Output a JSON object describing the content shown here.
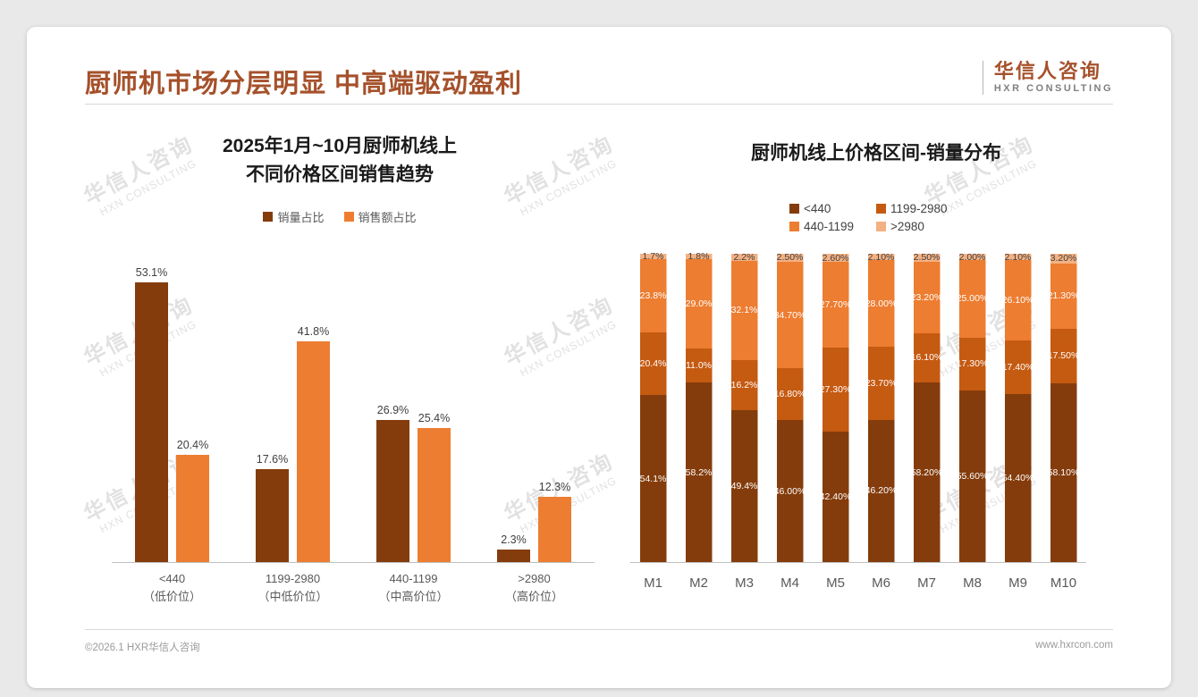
{
  "page": {
    "title": "厨师机市场分层明显 中高端驱动盈利",
    "logo": {
      "cn": "华信人咨询",
      "en": "HXR CONSULTING"
    },
    "watermark": {
      "line1": "华信人咨询",
      "line2": "HXN CONSULTING"
    },
    "footer": {
      "left": "©2026.1 HXR华信人咨询",
      "right": "www.hxrcon.com"
    }
  },
  "colors": {
    "title": "#A5512B",
    "series_lt440": "#843C0C",
    "series_1199_2980": "#C55A11",
    "series_440_1199": "#ED7D31",
    "series_gt2980": "#F4B183",
    "axis_line": "#BFBFBF",
    "value_label": "#404040"
  },
  "chart_data": [
    {
      "type": "bar",
      "stacked": false,
      "title": "2025年1月~10月厨师机线上\n不同价格区间销售趋势",
      "categories": [
        "<440\n（低价位）",
        "1199-2980\n（中低价位）",
        "440-1199\n（中高价位）",
        ">2980\n（高价位）"
      ],
      "series": [
        {
          "name": "销量占比",
          "color": "#843C0C",
          "values": [
            53.1,
            17.6,
            26.9,
            2.3
          ]
        },
        {
          "name": "销售额占比",
          "color": "#ED7D31",
          "values": [
            20.4,
            41.8,
            25.4,
            12.3
          ]
        }
      ],
      "value_suffix": "%",
      "label_decimals": 1,
      "ylim": [
        0,
        56
      ],
      "legend_position": "top",
      "grid": false
    },
    {
      "type": "bar",
      "stacked": true,
      "title": "厨师机线上价格区间-销量分布",
      "categories": [
        "M1",
        "M2",
        "M3",
        "M4",
        "M5",
        "M6",
        "M7",
        "M8",
        "M9",
        "M10"
      ],
      "series": [
        {
          "name": "<440",
          "color": "#843C0C",
          "label_color": "#FFFFFF",
          "values": [
            54.1,
            58.2,
            49.4,
            46.0,
            42.4,
            46.2,
            58.2,
            55.6,
            54.4,
            58.1
          ]
        },
        {
          "name": "1199-2980",
          "color": "#C55A11",
          "label_color": "#FFFFFF",
          "values": [
            20.4,
            11.0,
            16.2,
            16.8,
            27.3,
            23.7,
            16.1,
            17.3,
            17.4,
            17.5
          ]
        },
        {
          "name": "440-1199",
          "color": "#ED7D31",
          "label_color": "#FFFFFF",
          "values": [
            23.8,
            29.0,
            32.1,
            34.7,
            27.7,
            28.0,
            23.2,
            25.0,
            26.1,
            21.3
          ]
        },
        {
          "name": ">2980",
          "color": "#F4B183",
          "label_color": "#404040",
          "values": [
            1.7,
            1.8,
            2.2,
            2.5,
            2.6,
            2.1,
            2.5,
            2.0,
            2.1,
            3.2
          ]
        }
      ],
      "value_suffix": "%",
      "label_decimals_per_category": [
        1,
        1,
        1,
        2,
        2,
        2,
        2,
        2,
        2,
        2
      ],
      "ylim": [
        0,
        100
      ],
      "legend_position": "top",
      "legend_order": [
        "<440",
        "1199-2980",
        "440-1199",
        ">2980"
      ],
      "grid": false
    }
  ]
}
